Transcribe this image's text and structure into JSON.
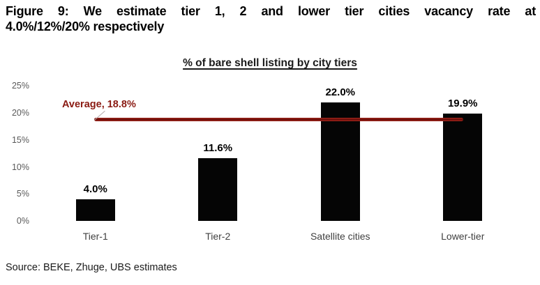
{
  "figure": {
    "title_line1": "Figure 9: We estimate tier 1, 2 and lower tier cities vacancy rate at",
    "title_line2": "4.0%/12%/20% respectively",
    "source": "Source: BEKE, Zhuge, UBS estimates"
  },
  "chart_data": {
    "type": "bar",
    "title": "% of bare shell listing by city tiers",
    "categories": [
      "Tier-1",
      "Tier-2",
      "Satellite cities",
      "Lower-tier"
    ],
    "values": [
      4.0,
      11.6,
      22.0,
      19.9
    ],
    "value_labels": [
      "4.0%",
      "11.6%",
      "22.0%",
      "19.9%"
    ],
    "xlabel": "",
    "ylabel": "",
    "ylim": [
      0,
      25
    ],
    "ytick_step": 5,
    "ytick_labels": [
      "0%",
      "5%",
      "10%",
      "15%",
      "20%",
      "25%"
    ],
    "grid": false,
    "legend": "none",
    "average": {
      "value": 18.8,
      "label": "Average, 18.8%"
    },
    "colors": {
      "bar": "#050505",
      "average_line": "#8e1310",
      "average_label": "#8a1a12",
      "axis_label": "#595959",
      "category_label": "#3f3f3f",
      "value_label": "#000000"
    }
  }
}
